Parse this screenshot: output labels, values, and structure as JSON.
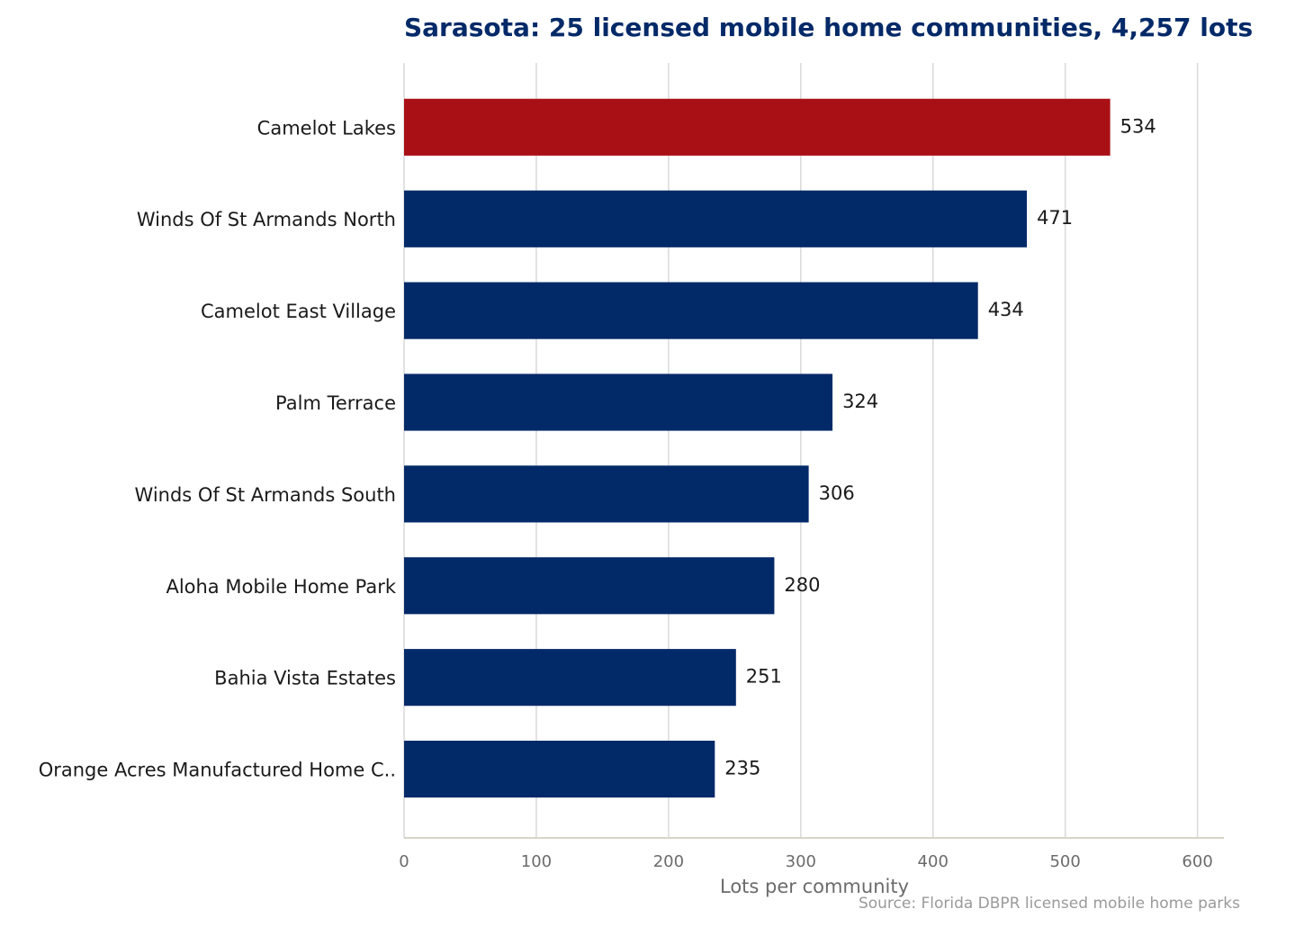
{
  "chart_data": {
    "type": "bar",
    "orientation": "horizontal",
    "title": "Sarasota: 25 licensed mobile home communities, 4,257 lots",
    "xlabel": "Lots per community",
    "ylabel": "",
    "source": "Source: Florida DBPR licensed mobile home parks",
    "categories": [
      "Camelot Lakes",
      "Winds Of St Armands North",
      "Camelot East Village",
      "Palm Terrace",
      "Winds Of St Armands South",
      "Aloha Mobile Home Park",
      "Bahia Vista Estates",
      "Orange Acres Manufactured Home C.."
    ],
    "values": [
      534,
      471,
      434,
      324,
      306,
      280,
      251,
      235
    ],
    "value_labels": [
      "534",
      "471",
      "434",
      "324",
      "306",
      "280",
      "251",
      "235"
    ],
    "highlight_index": 0,
    "xlim": [
      0,
      620
    ],
    "xticks": [
      0,
      100,
      200,
      300,
      400,
      500,
      600
    ],
    "xtick_labels": [
      "0",
      "100",
      "200",
      "300",
      "400",
      "500",
      "600"
    ],
    "grid": "vertical",
    "colors": {
      "bar": "#022968",
      "highlight": "#a91016",
      "title": "#022968"
    }
  }
}
